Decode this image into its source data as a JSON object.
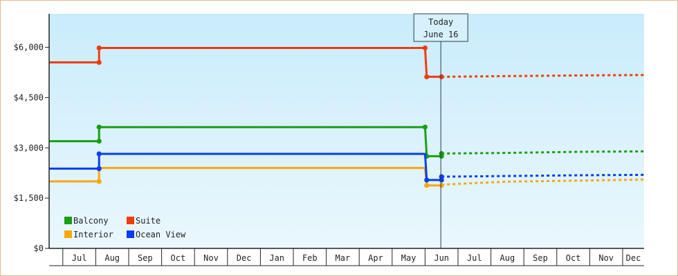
{
  "chart_data": {
    "type": "line",
    "title": "",
    "xlabel": "",
    "ylabel": "",
    "ylim": [
      0,
      7000
    ],
    "y_ticks": [
      {
        "value": 0,
        "label": "$0"
      },
      {
        "value": 1500,
        "label": "$1,500"
      },
      {
        "value": 3000,
        "label": "$3,000"
      },
      {
        "value": 4500,
        "label": "$4,500"
      },
      {
        "value": 6000,
        "label": "$6,000"
      }
    ],
    "months": [
      "Jul",
      "Aug",
      "Sep",
      "Oct",
      "Nov",
      "Dec",
      "Jan",
      "Feb",
      "Mar",
      "Apr",
      "May",
      "Jun",
      "Jul",
      "Aug",
      "Sep",
      "Oct",
      "Nov",
      "Dec"
    ],
    "today": {
      "line1": "Today",
      "line2": "June 16",
      "x": 12.0
    },
    "legend_position": "bottom-left",
    "grid": false,
    "series": [
      {
        "name": "Balcony",
        "color": "#1a9e12",
        "history": [
          [
            0,
            3200
          ],
          [
            1.6,
            3200
          ],
          [
            1.6,
            3620
          ],
          [
            11.5,
            3620
          ],
          [
            11.55,
            2750
          ],
          [
            12.0,
            2750
          ],
          [
            12.0,
            2830
          ]
        ],
        "markers": [
          [
            0,
            3200
          ],
          [
            1.6,
            3200
          ],
          [
            1.6,
            3620
          ],
          [
            11.5,
            3620
          ],
          [
            11.55,
            2750
          ],
          [
            12.0,
            2750
          ],
          [
            12.0,
            2830
          ]
        ],
        "forecast": [
          [
            12.0,
            2830
          ],
          [
            14,
            2850
          ],
          [
            16,
            2880
          ],
          [
            19,
            2900
          ]
        ]
      },
      {
        "name": "Suite",
        "color": "#f23a0c",
        "history": [
          [
            0,
            5550
          ],
          [
            1.6,
            5550
          ],
          [
            1.6,
            5980
          ],
          [
            11.5,
            5980
          ],
          [
            11.55,
            5120
          ],
          [
            12.0,
            5120
          ]
        ],
        "markers": [
          [
            0,
            5550
          ],
          [
            1.6,
            5550
          ],
          [
            1.6,
            5980
          ],
          [
            11.5,
            5980
          ],
          [
            11.55,
            5120
          ],
          [
            12.0,
            5120
          ]
        ],
        "forecast": [
          [
            12.0,
            5120
          ],
          [
            14,
            5140
          ],
          [
            16,
            5160
          ],
          [
            19,
            5180
          ]
        ]
      },
      {
        "name": "Interior",
        "color": "#f5a80c",
        "history": [
          [
            0,
            2000
          ],
          [
            1.6,
            2000
          ],
          [
            1.6,
            2400
          ],
          [
            11.5,
            2400
          ],
          [
            11.55,
            1880
          ],
          [
            12.0,
            1880
          ]
        ],
        "markers": [
          [
            0,
            2000
          ],
          [
            1.6,
            2000
          ],
          [
            11.55,
            1880
          ],
          [
            12.0,
            1880
          ]
        ],
        "forecast": [
          [
            12.0,
            1900
          ],
          [
            13,
            1950
          ],
          [
            14,
            1990
          ],
          [
            16,
            2020
          ],
          [
            19,
            2070
          ]
        ]
      },
      {
        "name": "Ocean View",
        "color": "#0a3cf0",
        "history": [
          [
            0,
            2380
          ],
          [
            1.6,
            2380
          ],
          [
            1.6,
            2820
          ],
          [
            11.5,
            2820
          ],
          [
            11.55,
            2040
          ],
          [
            12.0,
            2040
          ],
          [
            12.0,
            2140
          ]
        ],
        "markers": [
          [
            0,
            2380
          ],
          [
            1.6,
            2380
          ],
          [
            1.6,
            2820
          ],
          [
            11.55,
            2040
          ],
          [
            12.0,
            2040
          ],
          [
            12.0,
            2140
          ]
        ],
        "forecast": [
          [
            12.0,
            2140
          ],
          [
            14,
            2160
          ],
          [
            16,
            2180
          ],
          [
            19,
            2200
          ]
        ]
      }
    ]
  }
}
